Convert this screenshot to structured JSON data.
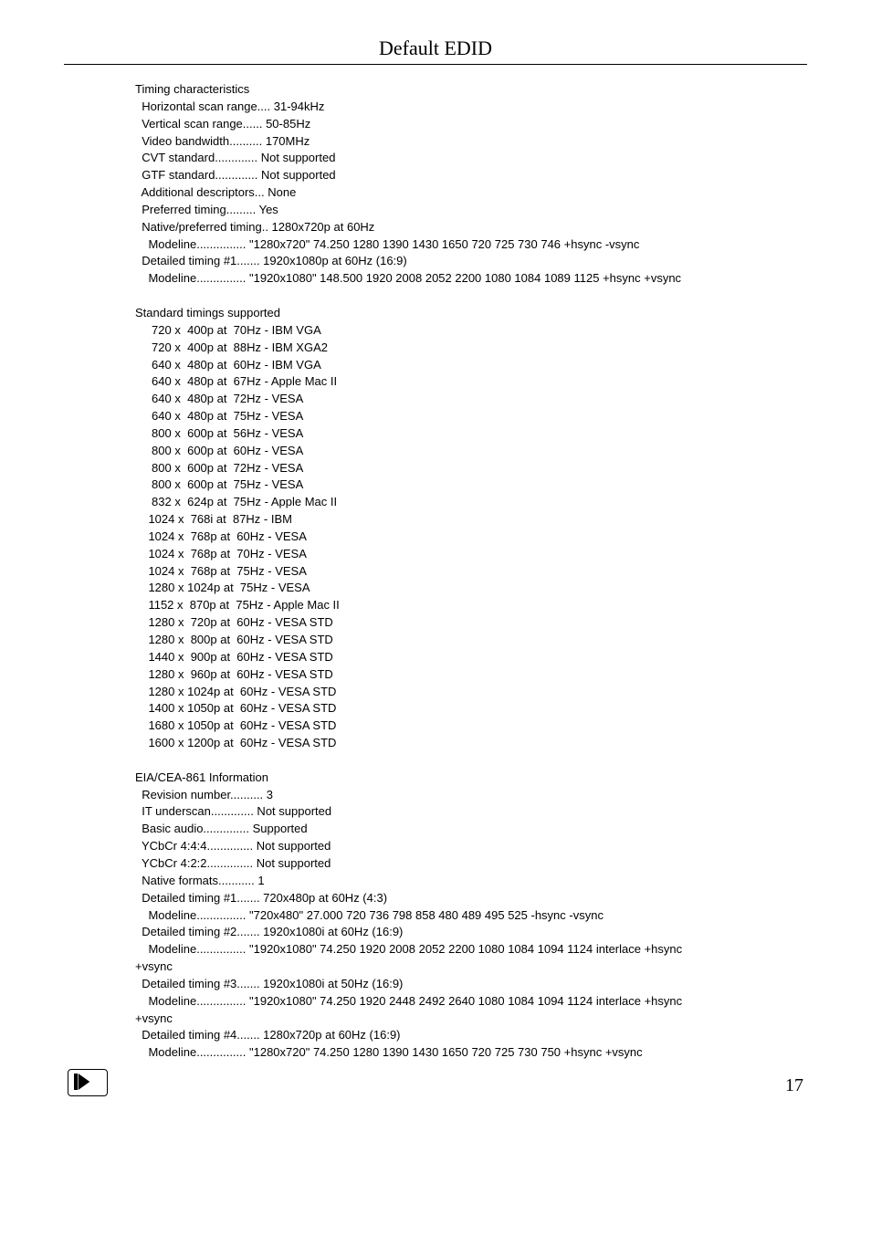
{
  "title": "Default EDID",
  "pageNumber": "17",
  "sections": {
    "timing": {
      "heading": "Timing characteristics",
      "lines": [
        "  Horizontal scan range.... 31-94kHz",
        "  Vertical scan range...... 50-85Hz",
        "  Video bandwidth.......... 170MHz",
        "  CVT standard............. Not supported",
        "  GTF standard............. Not supported",
        "  Additional descriptors... None",
        "  Preferred timing......... Yes",
        "  Native/preferred timing.. 1280x720p at 60Hz",
        "    Modeline............... \"1280x720\" 74.250 1280 1390 1430 1650 720 725 730 746 +hsync -vsync",
        "  Detailed timing #1....... 1920x1080p at 60Hz (16:9)",
        "    Modeline............... \"1920x1080\" 148.500 1920 2008 2052 2200 1080 1084 1089 1125 +hsync +vsync"
      ]
    },
    "standard": {
      "heading": "Standard timings supported",
      "lines": [
        "     720 x  400p at  70Hz - IBM VGA",
        "     720 x  400p at  88Hz - IBM XGA2",
        "     640 x  480p at  60Hz - IBM VGA",
        "     640 x  480p at  67Hz - Apple Mac II",
        "     640 x  480p at  72Hz - VESA",
        "     640 x  480p at  75Hz - VESA",
        "     800 x  600p at  56Hz - VESA",
        "     800 x  600p at  60Hz - VESA",
        "     800 x  600p at  72Hz - VESA",
        "     800 x  600p at  75Hz - VESA",
        "     832 x  624p at  75Hz - Apple Mac II",
        "    1024 x  768i at  87Hz - IBM",
        "    1024 x  768p at  60Hz - VESA",
        "    1024 x  768p at  70Hz - VESA",
        "    1024 x  768p at  75Hz - VESA",
        "    1280 x 1024p at  75Hz - VESA",
        "    1152 x  870p at  75Hz - Apple Mac II",
        "    1280 x  720p at  60Hz - VESA STD",
        "    1280 x  800p at  60Hz - VESA STD",
        "    1440 x  900p at  60Hz - VESA STD",
        "    1280 x  960p at  60Hz - VESA STD",
        "    1280 x 1024p at  60Hz - VESA STD",
        "    1400 x 1050p at  60Hz - VESA STD",
        "    1680 x 1050p at  60Hz - VESA STD",
        "    1600 x 1200p at  60Hz - VESA STD"
      ]
    },
    "eia": {
      "heading": "EIA/CEA-861 Information",
      "lines": [
        "  Revision number.......... 3",
        "  IT underscan............. Not supported",
        "  Basic audio.............. Supported",
        "  YCbCr 4:4:4.............. Not supported",
        "  YCbCr 4:2:2.............. Not supported",
        "  Native formats........... 1",
        "  Detailed timing #1....... 720x480p at 60Hz (4:3)",
        "    Modeline............... \"720x480\" 27.000 720 736 798 858 480 489 495 525 -hsync -vsync",
        "  Detailed timing #2....... 1920x1080i at 60Hz (16:9)",
        "    Modeline............... \"1920x1080\" 74.250 1920 2008 2052 2200 1080 1084 1094 1124 interlace +hsync\n+vsync",
        "  Detailed timing #3....... 1920x1080i at 50Hz (16:9)",
        "    Modeline............... \"1920x1080\" 74.250 1920 2448 2492 2640 1080 1084 1094 1124 interlace +hsync\n+vsync",
        "  Detailed timing #4....... 1280x720p at 60Hz (16:9)",
        "    Modeline............... \"1280x720\" 74.250 1280 1390 1430 1650 720 725 730 750 +hsync +vsync"
      ]
    }
  }
}
